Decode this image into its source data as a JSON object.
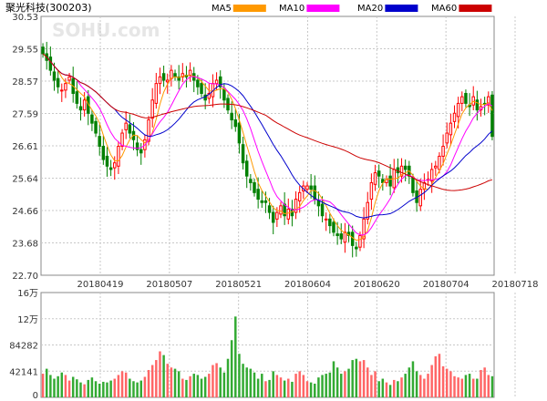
{
  "header": {
    "title": "聚光科技(300203)",
    "watermark": "SOHU.com"
  },
  "legend": [
    {
      "label": "MA5",
      "color": "#ff9900"
    },
    {
      "label": "MA10",
      "color": "#ff00ff"
    },
    {
      "label": "MA20",
      "color": "#0000cc"
    },
    {
      "label": "MA60",
      "color": "#cc0000"
    }
  ],
  "colors": {
    "up": "#ff0000",
    "down": "#008000",
    "grid": "#c8c8c8",
    "upVolume": "#ff6666",
    "downVolume": "#33aa33"
  },
  "chart_data": {
    "type": "candlestick",
    "price_axis": {
      "ylim": [
        22.7,
        30.53
      ],
      "ticks": [
        "30.53",
        "29.55",
        "28.57",
        "27.59",
        "26.61",
        "25.64",
        "24.66",
        "23.68",
        "22.70"
      ]
    },
    "date_labels": [
      "20180419",
      "20180507",
      "20180521",
      "20180604",
      "20180620",
      "20180704",
      "20180718"
    ],
    "volume_axis": {
      "ylim": [
        0,
        168564
      ],
      "ticks": [
        "16万",
        "12万",
        "84282",
        "42141",
        "0"
      ]
    },
    "days": 120,
    "close": [
      29.4,
      29.2,
      28.9,
      28.6,
      28.4,
      28.3,
      28.5,
      28.7,
      28.2,
      27.9,
      27.7,
      28.0,
      27.6,
      27.3,
      27.0,
      26.6,
      26.2,
      26.0,
      25.9,
      26.1,
      26.6,
      27.0,
      27.3,
      27.0,
      26.8,
      26.5,
      26.4,
      26.8,
      27.4,
      28.0,
      28.5,
      28.7,
      28.6,
      28.6,
      28.9,
      28.7,
      28.6,
      28.8,
      28.7,
      28.9,
      28.6,
      28.4,
      28.2,
      28.0,
      28.2,
      28.5,
      28.6,
      28.4,
      28.0,
      27.7,
      27.4,
      27.2,
      26.7,
      26.1,
      25.7,
      25.5,
      25.2,
      25.0,
      24.9,
      24.9,
      24.6,
      24.3,
      24.6,
      24.8,
      24.5,
      24.7,
      24.5,
      25.0,
      25.2,
      25.4,
      25.4,
      25.3,
      25.0,
      24.8,
      24.5,
      24.4,
      24.2,
      24.0,
      23.9,
      23.8,
      24.0,
      23.9,
      23.6,
      23.5,
      23.9,
      24.4,
      24.9,
      25.5,
      25.8,
      25.7,
      25.5,
      25.6,
      25.4,
      25.9,
      25.8,
      26.0,
      25.9,
      25.7,
      25.2,
      24.9,
      25.3,
      25.5,
      25.6,
      25.9,
      26.0,
      26.3,
      26.6,
      27.0,
      27.3,
      27.6,
      27.9,
      28.1,
      27.9,
      27.8,
      28.1,
      27.7,
      27.8,
      27.9,
      28.1,
      26.9
    ],
    "volume": [
      38000,
      46000,
      36000,
      30000,
      34000,
      40000,
      36000,
      27000,
      33000,
      29000,
      24000,
      21000,
      28000,
      32000,
      26000,
      22000,
      25000,
      24000,
      27000,
      30000,
      36000,
      42000,
      40000,
      30000,
      26000,
      24000,
      27000,
      33000,
      44000,
      52000,
      60000,
      74000,
      68000,
      54000,
      48000,
      46000,
      42000,
      30000,
      28000,
      34000,
      38000,
      36000,
      30000,
      33000,
      38000,
      52000,
      55000,
      48000,
      40000,
      62000,
      92000,
      130000,
      70000,
      54000,
      48000,
      46000,
      40000,
      30000,
      38000,
      26000,
      28000,
      42000,
      36000,
      32000,
      27000,
      30000,
      25000,
      38000,
      42000,
      36000,
      26000,
      24000,
      22000,
      32000,
      36000,
      38000,
      40000,
      58000,
      48000,
      38000,
      42000,
      46000,
      60000,
      62000,
      58000,
      60000,
      48000,
      36000,
      42000,
      26000,
      30000,
      24000,
      20000,
      28000,
      26000,
      32000,
      38000,
      48000,
      58000,
      42000,
      36000,
      30000,
      38000,
      52000,
      66000,
      70000,
      50000,
      46000,
      42000,
      34000,
      32000,
      30000,
      36000,
      38000,
      30000,
      30000,
      44000,
      48000,
      36000,
      34000
    ]
  }
}
